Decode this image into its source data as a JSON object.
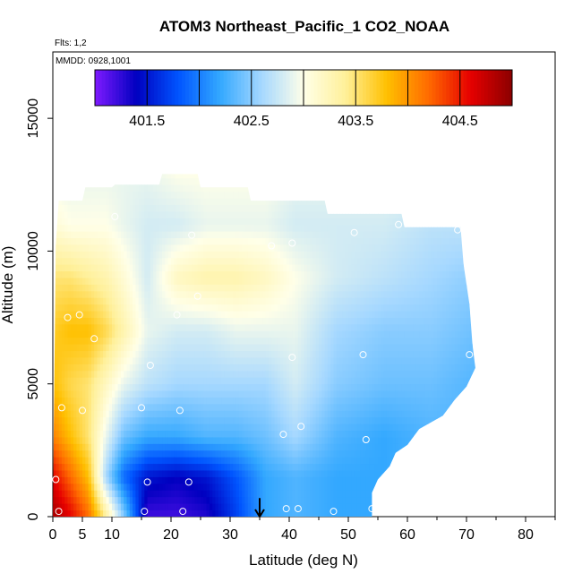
{
  "chart_data": {
    "type": "heatmap",
    "title": "ATOM3 Northeast_Pacific_1 CO2_NOAA",
    "subtitle_flights": "Flts: 1,2",
    "subtitle_dates": "MMDD: 0928,1001",
    "xlabel": "Latitude (deg N)",
    "ylabel": "Altitude (m)",
    "xlim": [
      0,
      85
    ],
    "ylim": [
      0,
      17500
    ],
    "x_ticks": [
      0,
      5,
      10,
      20,
      30,
      40,
      50,
      60,
      70,
      80
    ],
    "x_tick_labels": [
      "0",
      "5",
      "10",
      "20",
      "30",
      "40",
      "50",
      "60",
      "70",
      "80"
    ],
    "y_ticks": [
      0,
      5000,
      10000,
      15000
    ],
    "y_tick_labels": [
      "0",
      "5000",
      "10000",
      "15000"
    ],
    "colorbar": {
      "range": [
        401.0,
        405.0
      ],
      "tick_values": [
        401.5,
        402.5,
        403.5,
        404.5
      ],
      "tick_labels": [
        "401.5",
        "402.5",
        "403.5",
        "404.5"
      ],
      "break_values": [
        401.5,
        402.0,
        402.5,
        403.0,
        403.5,
        404.0,
        404.5,
        405.0
      ],
      "colors": [
        "#7f1aff",
        "#0000c0",
        "#0055ff",
        "#33a8ff",
        "#a6d8ff",
        "#ffffe8",
        "#fff09a",
        "#ffc000",
        "#ff6a00",
        "#e60000",
        "#8b0000"
      ]
    },
    "lat_sections": [
      {
        "lat": 0,
        "top": 0
      },
      {
        "lat": 0.5,
        "top": 10200
      },
      {
        "lat": 1,
        "top": 11900
      },
      {
        "lat": 5,
        "top": 11900
      },
      {
        "lat": 5.5,
        "top": 12400
      },
      {
        "lat": 10,
        "top": 12400
      },
      {
        "lat": 10.5,
        "top": 12500
      },
      {
        "lat": 18,
        "top": 12500
      },
      {
        "lat": 18.5,
        "top": 12900
      },
      {
        "lat": 24.5,
        "top": 12900
      },
      {
        "lat": 25,
        "top": 12400
      },
      {
        "lat": 33,
        "top": 12400
      },
      {
        "lat": 33.5,
        "top": 11900
      },
      {
        "lat": 46,
        "top": 11900
      },
      {
        "lat": 46.5,
        "top": 11400
      },
      {
        "lat": 59,
        "top": 11400
      },
      {
        "lat": 59.5,
        "top": 10900
      },
      {
        "lat": 69,
        "top": 10900
      },
      {
        "lat": 69.5,
        "top": 9500
      },
      {
        "lat": 70.5,
        "top": 8000
      },
      {
        "lat": 71,
        "top": 6500
      },
      {
        "lat": 71.5,
        "top": 5600
      },
      {
        "lat": 70,
        "top": 4900
      },
      {
        "lat": 68,
        "top": 4400
      },
      {
        "lat": 66,
        "top": 3800
      },
      {
        "lat": 62,
        "top": 3300
      },
      {
        "lat": 60,
        "top": 2700
      },
      {
        "lat": 58,
        "top": 2400
      },
      {
        "lat": 57,
        "top": 1900
      },
      {
        "lat": 55,
        "top": 1400
      },
      {
        "lat": 54,
        "top": 900
      },
      {
        "lat": 54,
        "top": 0
      }
    ],
    "field_profiles": [
      {
        "lat": 0,
        "values": [
          [
            0,
            404.9
          ],
          [
            1500,
            404.6
          ],
          [
            3000,
            404.1
          ],
          [
            5000,
            403.8
          ],
          [
            7000,
            403.7
          ],
          [
            9000,
            403.5
          ],
          [
            11000,
            403.1
          ],
          [
            13000,
            402.9
          ]
        ]
      },
      {
        "lat": 3,
        "values": [
          [
            0,
            404.6
          ],
          [
            1500,
            404.2
          ],
          [
            3000,
            403.8
          ],
          [
            5000,
            403.6
          ],
          [
            7000,
            403.8
          ],
          [
            9000,
            403.5
          ],
          [
            11000,
            403.0
          ],
          [
            13000,
            402.9
          ]
        ]
      },
      {
        "lat": 6,
        "values": [
          [
            0,
            404.2
          ],
          [
            1500,
            403.8
          ],
          [
            3000,
            403.5
          ],
          [
            5000,
            403.5
          ],
          [
            7000,
            403.8
          ],
          [
            9000,
            403.4
          ],
          [
            11000,
            403.0
          ],
          [
            13000,
            402.9
          ]
        ]
      },
      {
        "lat": 9,
        "values": [
          [
            0,
            403.4
          ],
          [
            1500,
            402.6
          ],
          [
            3000,
            402.9
          ],
          [
            5000,
            403.2
          ],
          [
            7000,
            403.6
          ],
          [
            9000,
            403.3
          ],
          [
            11000,
            403.0
          ],
          [
            13000,
            402.9
          ]
        ]
      },
      {
        "lat": 12,
        "values": [
          [
            0,
            402.5
          ],
          [
            1500,
            401.9
          ],
          [
            3000,
            402.4
          ],
          [
            5000,
            402.9
          ],
          [
            7000,
            403.3
          ],
          [
            9000,
            403.1
          ],
          [
            11000,
            402.9
          ],
          [
            13000,
            402.9
          ]
        ]
      },
      {
        "lat": 16,
        "values": [
          [
            0,
            401.2
          ],
          [
            1500,
            401.5
          ],
          [
            3000,
            402.2
          ],
          [
            5000,
            402.7
          ],
          [
            7000,
            402.9
          ],
          [
            9000,
            402.8
          ],
          [
            11000,
            402.8
          ],
          [
            13000,
            402.9
          ]
        ]
      },
      {
        "lat": 21,
        "values": [
          [
            0,
            401.2
          ],
          [
            1500,
            401.4
          ],
          [
            3000,
            402.2
          ],
          [
            5000,
            402.6
          ],
          [
            7000,
            402.8
          ],
          [
            9000,
            403.2
          ],
          [
            11000,
            402.8
          ],
          [
            13000,
            403.0
          ]
        ]
      },
      {
        "lat": 26,
        "values": [
          [
            0,
            401.3
          ],
          [
            1500,
            401.5
          ],
          [
            3000,
            402.3
          ],
          [
            5000,
            402.6
          ],
          [
            7000,
            402.8
          ],
          [
            9000,
            403.3
          ],
          [
            11000,
            402.9
          ],
          [
            13000,
            403.0
          ]
        ]
      },
      {
        "lat": 31,
        "values": [
          [
            0,
            401.7
          ],
          [
            1500,
            401.8
          ],
          [
            3000,
            402.3
          ],
          [
            5000,
            402.6
          ],
          [
            7000,
            402.9
          ],
          [
            9000,
            403.3
          ],
          [
            11000,
            402.9
          ],
          [
            13000,
            403.0
          ]
        ]
      },
      {
        "lat": 36,
        "values": [
          [
            0,
            402.2
          ],
          [
            1500,
            402.2
          ],
          [
            3000,
            402.4
          ],
          [
            5000,
            402.6
          ],
          [
            7000,
            402.9
          ],
          [
            9000,
            403.2
          ],
          [
            11000,
            402.9
          ],
          [
            13000,
            403.0
          ]
        ]
      },
      {
        "lat": 41,
        "values": [
          [
            0,
            402.3
          ],
          [
            1500,
            402.3
          ],
          [
            3000,
            402.6
          ],
          [
            5000,
            402.8
          ],
          [
            7000,
            402.9
          ],
          [
            9000,
            403.0
          ],
          [
            11000,
            402.8
          ],
          [
            13000,
            402.9
          ]
        ]
      },
      {
        "lat": 48,
        "values": [
          [
            0,
            402.2
          ],
          [
            1500,
            402.2
          ],
          [
            3000,
            402.3
          ],
          [
            5000,
            402.5
          ],
          [
            7000,
            402.6
          ],
          [
            9000,
            402.8
          ],
          [
            11000,
            402.8
          ],
          [
            13000,
            402.9
          ]
        ]
      },
      {
        "lat": 56,
        "values": [
          [
            0,
            402.2
          ],
          [
            1500,
            402.2
          ],
          [
            3000,
            402.2
          ],
          [
            5000,
            402.4
          ],
          [
            7000,
            402.5
          ],
          [
            9000,
            402.7
          ],
          [
            11000,
            402.8
          ],
          [
            13000,
            402.9
          ]
        ]
      },
      {
        "lat": 64,
        "values": [
          [
            0,
            402.3
          ],
          [
            1500,
            402.3
          ],
          [
            3000,
            402.3
          ],
          [
            5000,
            402.4
          ],
          [
            7000,
            402.5
          ],
          [
            9000,
            402.6
          ],
          [
            11000,
            402.7
          ],
          [
            13000,
            402.9
          ]
        ]
      },
      {
        "lat": 72,
        "values": [
          [
            0,
            402.3
          ],
          [
            1500,
            402.3
          ],
          [
            3000,
            402.3
          ],
          [
            5000,
            402.3
          ],
          [
            7000,
            402.4
          ],
          [
            9000,
            402.5
          ],
          [
            11000,
            402.7
          ],
          [
            13000,
            402.9
          ]
        ]
      }
    ],
    "sample_points": [
      {
        "lat": 0.5,
        "alt": 1400
      },
      {
        "lat": 1,
        "alt": 200
      },
      {
        "lat": 1.5,
        "alt": 4100
      },
      {
        "lat": 2.5,
        "alt": 7500
      },
      {
        "lat": 4.5,
        "alt": 7600
      },
      {
        "lat": 5,
        "alt": 4000
      },
      {
        "lat": 7,
        "alt": 6700
      },
      {
        "lat": 10.5,
        "alt": 11300
      },
      {
        "lat": 15,
        "alt": 4100
      },
      {
        "lat": 15.5,
        "alt": 200
      },
      {
        "lat": 16,
        "alt": 1300
      },
      {
        "lat": 16.5,
        "alt": 5700
      },
      {
        "lat": 21,
        "alt": 7600
      },
      {
        "lat": 21.5,
        "alt": 4000
      },
      {
        "lat": 22,
        "alt": 200
      },
      {
        "lat": 23,
        "alt": 1300
      },
      {
        "lat": 23.5,
        "alt": 10600
      },
      {
        "lat": 24.5,
        "alt": 8300
      },
      {
        "lat": 37,
        "alt": 10200
      },
      {
        "lat": 39,
        "alt": 3100
      },
      {
        "lat": 39.5,
        "alt": 300
      },
      {
        "lat": 40.5,
        "alt": 10300
      },
      {
        "lat": 40.5,
        "alt": 6000
      },
      {
        "lat": 41.5,
        "alt": 300
      },
      {
        "lat": 42,
        "alt": 3400
      },
      {
        "lat": 47.5,
        "alt": 200
      },
      {
        "lat": 51,
        "alt": 10700
      },
      {
        "lat": 52.5,
        "alt": 6100
      },
      {
        "lat": 53,
        "alt": 2900
      },
      {
        "lat": 54,
        "alt": 300
      },
      {
        "lat": 58.5,
        "alt": 11000
      },
      {
        "lat": 68.5,
        "alt": 10800
      },
      {
        "lat": 70.5,
        "alt": 6100
      }
    ],
    "marker_arrow": {
      "lat": 35,
      "alt_from": 700,
      "alt_to": 0
    }
  }
}
